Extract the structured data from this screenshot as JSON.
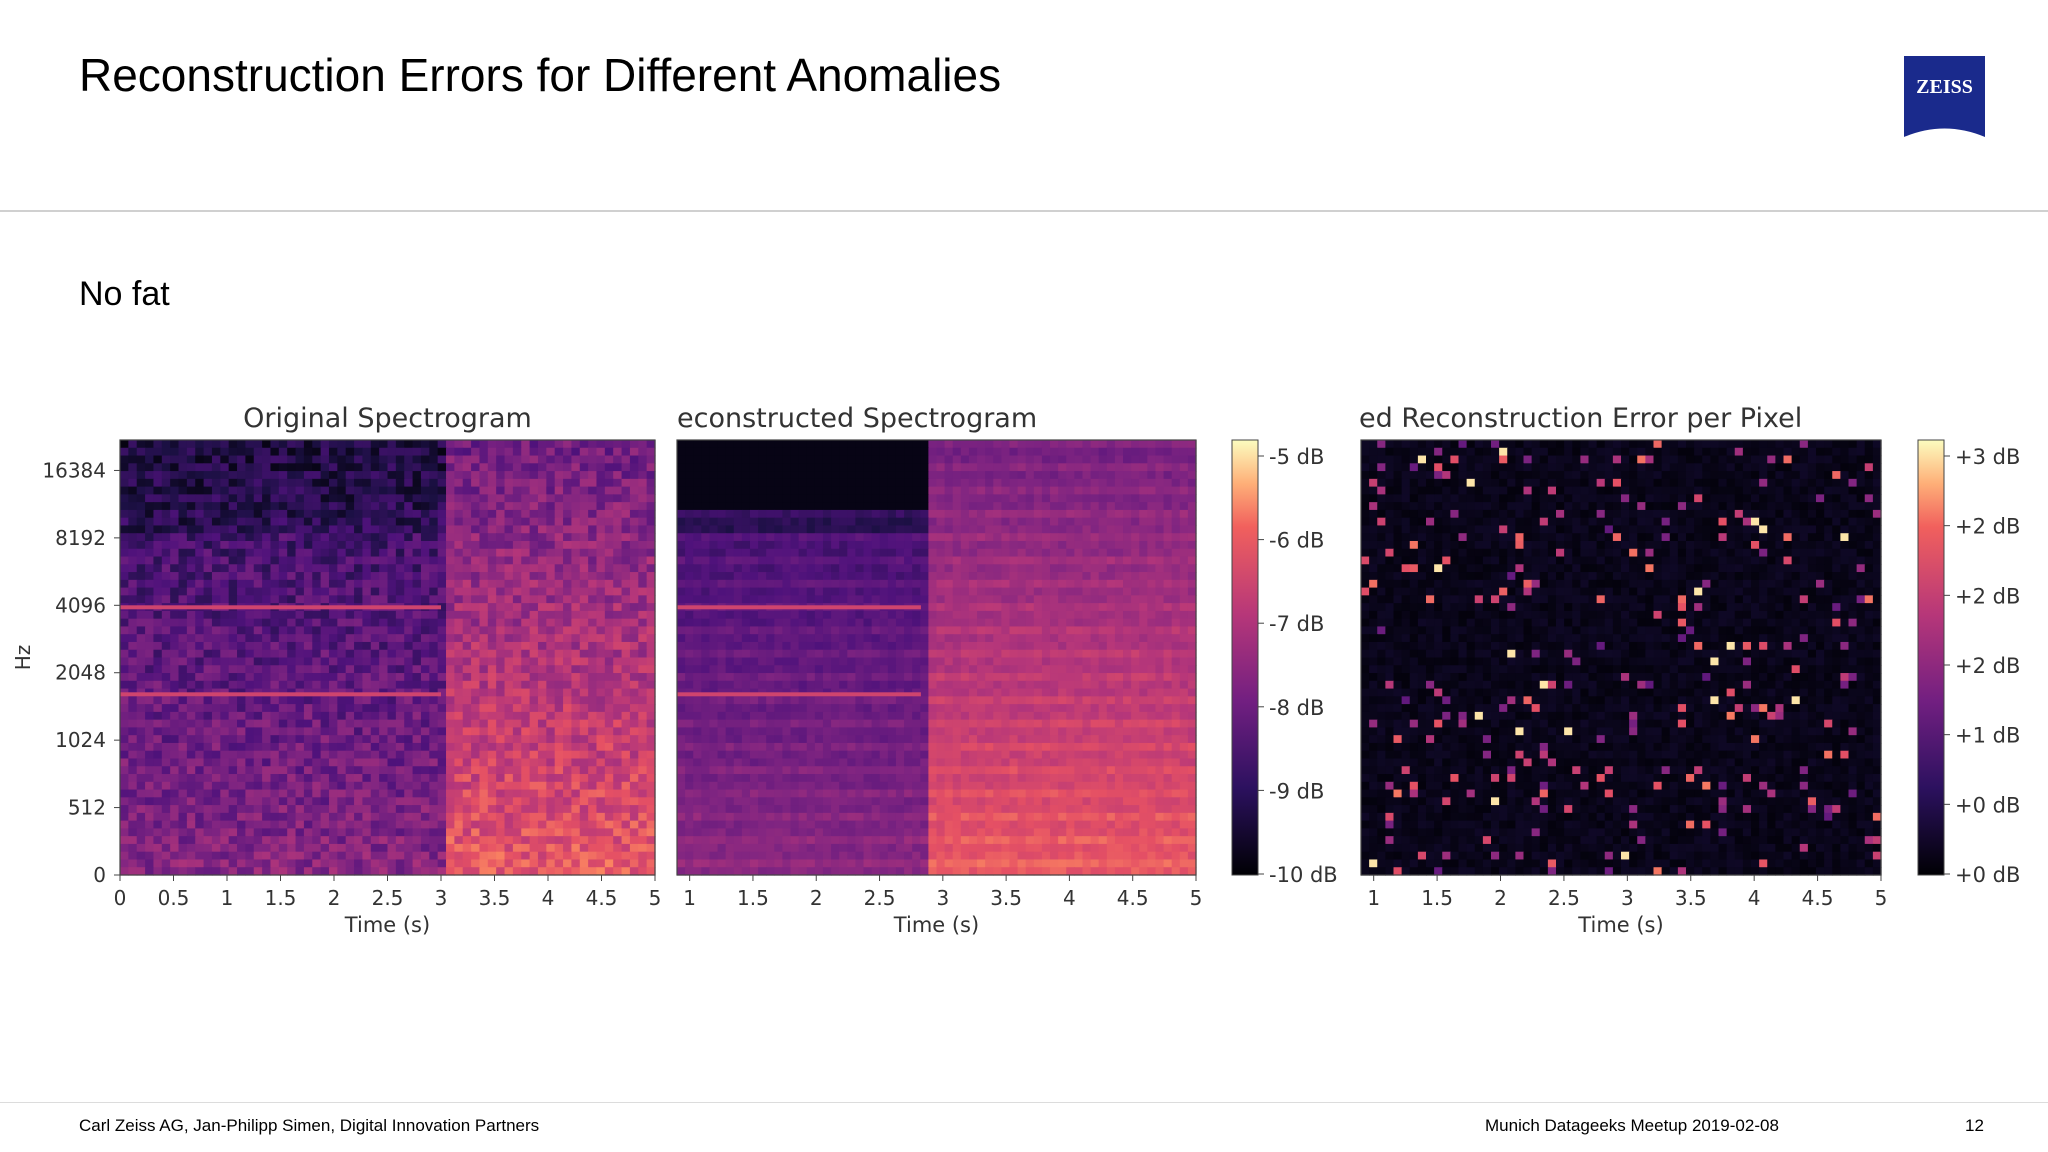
{
  "slide": {
    "title": "Reconstruction Errors for Different Anomalies",
    "subtitle": "No fat",
    "logo_text": "ZEISS",
    "brand_color": "#1a2a8c"
  },
  "footer": {
    "left": "Carl Zeiss AG, Jan-Philipp Simen, Digital Innovation Partners",
    "middle": "Munich Datageeks Meetup 2019-02-08",
    "page_number": "12"
  },
  "chart_data": [
    {
      "type": "heatmap",
      "title": "Original Spectrogram",
      "xlabel": "Time (s)",
      "ylabel": "Hz",
      "x_ticks": [
        "0",
        "0.5",
        "1",
        "1.5",
        "2",
        "2.5",
        "3",
        "3.5",
        "4",
        "4.5",
        "5"
      ],
      "y_ticks": [
        "0",
        "512",
        "1024",
        "2048",
        "4096",
        "8192",
        "16384"
      ],
      "xlim": [
        0,
        5
      ],
      "colormap": "magma",
      "notes": "Noisy broadband energy; tonal lines near 4096 Hz and 1800 Hz from 0 to ~3 s; energy increases strongly after ~3 s."
    },
    {
      "type": "heatmap",
      "title": "econstructed Spectrogram",
      "xlabel": "Time (s)",
      "x_ticks": [
        "1",
        "1.5",
        "2",
        "2.5",
        "3",
        "3.5",
        "4",
        "4.5",
        "5"
      ],
      "xlim": [
        0.9,
        5
      ],
      "colormap": "magma",
      "colorbar": {
        "tick_labels": [
          "-5 dB",
          "-6 dB",
          "-7 dB",
          "-8 dB",
          "-9 dB",
          "-10 dB"
        ]
      }
    },
    {
      "type": "heatmap",
      "title": "ed Reconstruction Error per Pixel",
      "xlabel": "Time (s)",
      "x_ticks": [
        "1",
        "1.5",
        "2",
        "2.5",
        "3",
        "3.5",
        "4",
        "4.5",
        "5"
      ],
      "xlim": [
        0.9,
        5
      ],
      "colormap": "magma",
      "colorbar": {
        "tick_labels": [
          "+3 dB",
          "+2 dB",
          "+2 dB",
          "+2 dB",
          "+1 dB",
          "+0 dB",
          "+0 dB"
        ]
      },
      "notes": "Mostly near zero error with sparse bright points."
    }
  ]
}
